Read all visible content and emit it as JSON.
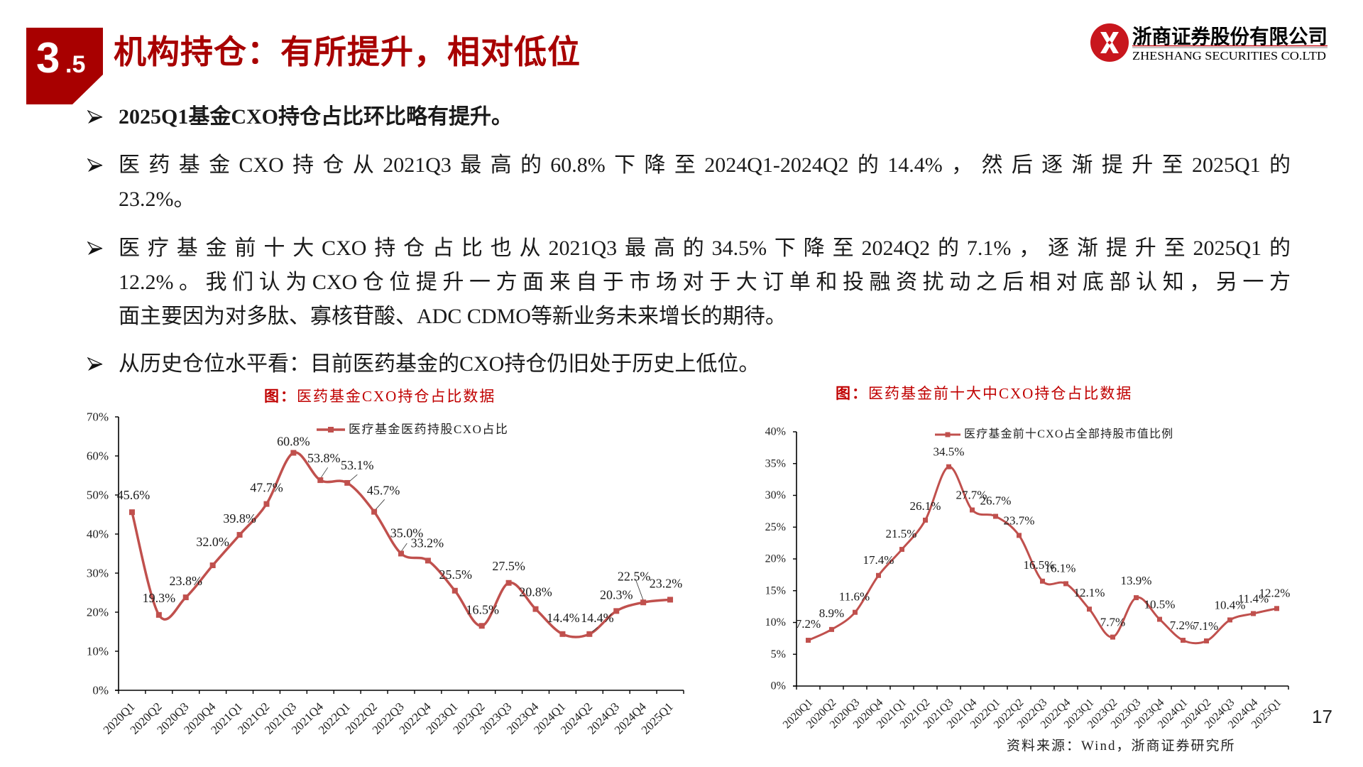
{
  "header": {
    "badge": {
      "major": "3",
      "minor": ".5"
    },
    "title": "机构持仓：有所提升，相对低位",
    "logo": {
      "name_cn": "浙商证券股份有限公司",
      "name_en": "ZHESHANG SECURITIES CO.LTD"
    }
  },
  "bullets": [
    {
      "bold": true,
      "lines": [
        "2025Q1基金CXO持仓占比环比略有提升。"
      ]
    },
    {
      "bold": false,
      "lines": [
        "医药基金CXO持仓从2021Q3最高的60.8%下降至2024Q1-2024Q2的14.4%，然后逐渐提升至2025Q1的",
        "23.2%。"
      ]
    },
    {
      "bold": false,
      "lines": [
        "医疗基金前十大CXO持仓占比也从2021Q3最高的34.5%下降至2024Q2的7.1%，逐渐提升至2025Q1的",
        "12.2%。我们认为CXO仓位提升一方面来自于市场对于大订单和投融资扰动之后相对底部认知，另一方",
        "面主要因为对多肽、寡核苷酸、ADC CDMO等新业务未来增长的期待。"
      ]
    },
    {
      "bold": false,
      "lines": [
        "从历史仓位水平看：目前医药基金的CXO持仓仍旧处于历史上低位。"
      ]
    }
  ],
  "source": "资料来源：Wind，浙商证券研究所",
  "page_number": "17",
  "colors": {
    "accent_red": "#A80000",
    "chart_title_red": "#C00000",
    "series_red": "#C0504D",
    "logo_red": "#C8161D"
  },
  "chart_data": [
    {
      "type": "line",
      "title_prefix": "图：",
      "title": "医药基金CXO持仓占比数据",
      "categories": [
        "2020Q1",
        "2020Q2",
        "2020Q3",
        "2020Q4",
        "2021Q1",
        "2021Q2",
        "2021Q3",
        "2021Q4",
        "2022Q1",
        "2022Q2",
        "2022Q3",
        "2022Q4",
        "2023Q1",
        "2023Q2",
        "2023Q3",
        "2023Q4",
        "2024Q1",
        "2024Q2",
        "2024Q3",
        "2024Q4",
        "2025Q1"
      ],
      "series": [
        {
          "name": "医疗基金医药持股CXO占比",
          "values": [
            45.6,
            19.3,
            23.8,
            32.0,
            39.8,
            47.7,
            60.8,
            53.8,
            53.1,
            45.7,
            35.0,
            33.2,
            25.5,
            16.5,
            27.5,
            20.8,
            14.4,
            14.4,
            20.3,
            22.5,
            23.2
          ],
          "data_labels": [
            "45.6%",
            "19.3%",
            "23.8%",
            "32.0%",
            "39.8%",
            "47.7%",
            "60.8%",
            "53.8%",
            "53.1%",
            "45.7%",
            "35.0%",
            "33.2%",
            "25.5%",
            "16.5%",
            "27.5%",
            "20.8%",
            "14.4%",
            "14.4%",
            "20.3%",
            "22.5%",
            "23.2%"
          ],
          "color": "#C0504D",
          "marker": "square",
          "smooth": true
        }
      ],
      "xlabel": "",
      "ylabel": "",
      "ylim": [
        0,
        70
      ],
      "yticks": [
        0,
        10,
        20,
        30,
        40,
        50,
        60,
        70
      ],
      "ytick_labels": [
        "0%",
        "10%",
        "20%",
        "30%",
        "40%",
        "50%",
        "60%",
        "70%"
      ],
      "grid": false,
      "legend_position": "top-right inside plot"
    },
    {
      "type": "line",
      "title_prefix": "图：",
      "title": "医药基金前十大中CXO持仓占比数据",
      "categories": [
        "2020Q1",
        "2020Q2",
        "2020Q3",
        "2020Q4",
        "2021Q1",
        "2021Q2",
        "2021Q3",
        "2021Q4",
        "2022Q1",
        "2022Q2",
        "2022Q3",
        "2022Q4",
        "2023Q1",
        "2023Q2",
        "2023Q3",
        "2023Q4",
        "2024Q1",
        "2024Q2",
        "2024Q3",
        "2024Q4",
        "2025Q1"
      ],
      "series": [
        {
          "name": "医疗基金前十CXO占全部持股市值比例",
          "values": [
            7.2,
            8.9,
            11.6,
            17.4,
            21.5,
            26.1,
            34.5,
            27.7,
            26.7,
            23.7,
            16.5,
            16.1,
            12.1,
            7.7,
            13.9,
            10.5,
            7.2,
            7.1,
            10.4,
            11.4,
            12.2
          ],
          "data_labels": [
            "7.2%",
            "8.9%",
            "11.6%",
            "17.4%",
            "21.5%",
            "26.1%",
            "34.5%",
            "27.7%",
            "26.7%",
            "23.7%",
            "16.5%",
            "16.1%",
            "12.1%",
            "7.7%",
            "13.9%",
            "10.5%",
            "7.2%",
            "7.1%",
            "10.4%",
            "11.4%",
            "12.2%"
          ],
          "color": "#C0504D",
          "marker": "square",
          "smooth": true
        }
      ],
      "xlabel": "",
      "ylabel": "",
      "ylim": [
        0,
        40
      ],
      "yticks": [
        0,
        5,
        10,
        15,
        20,
        25,
        30,
        35,
        40
      ],
      "ytick_labels": [
        "0%",
        "5%",
        "10%",
        "15%",
        "20%",
        "25%",
        "30%",
        "35%",
        "40%"
      ],
      "grid": false,
      "legend_position": "top-right inside plot"
    }
  ]
}
